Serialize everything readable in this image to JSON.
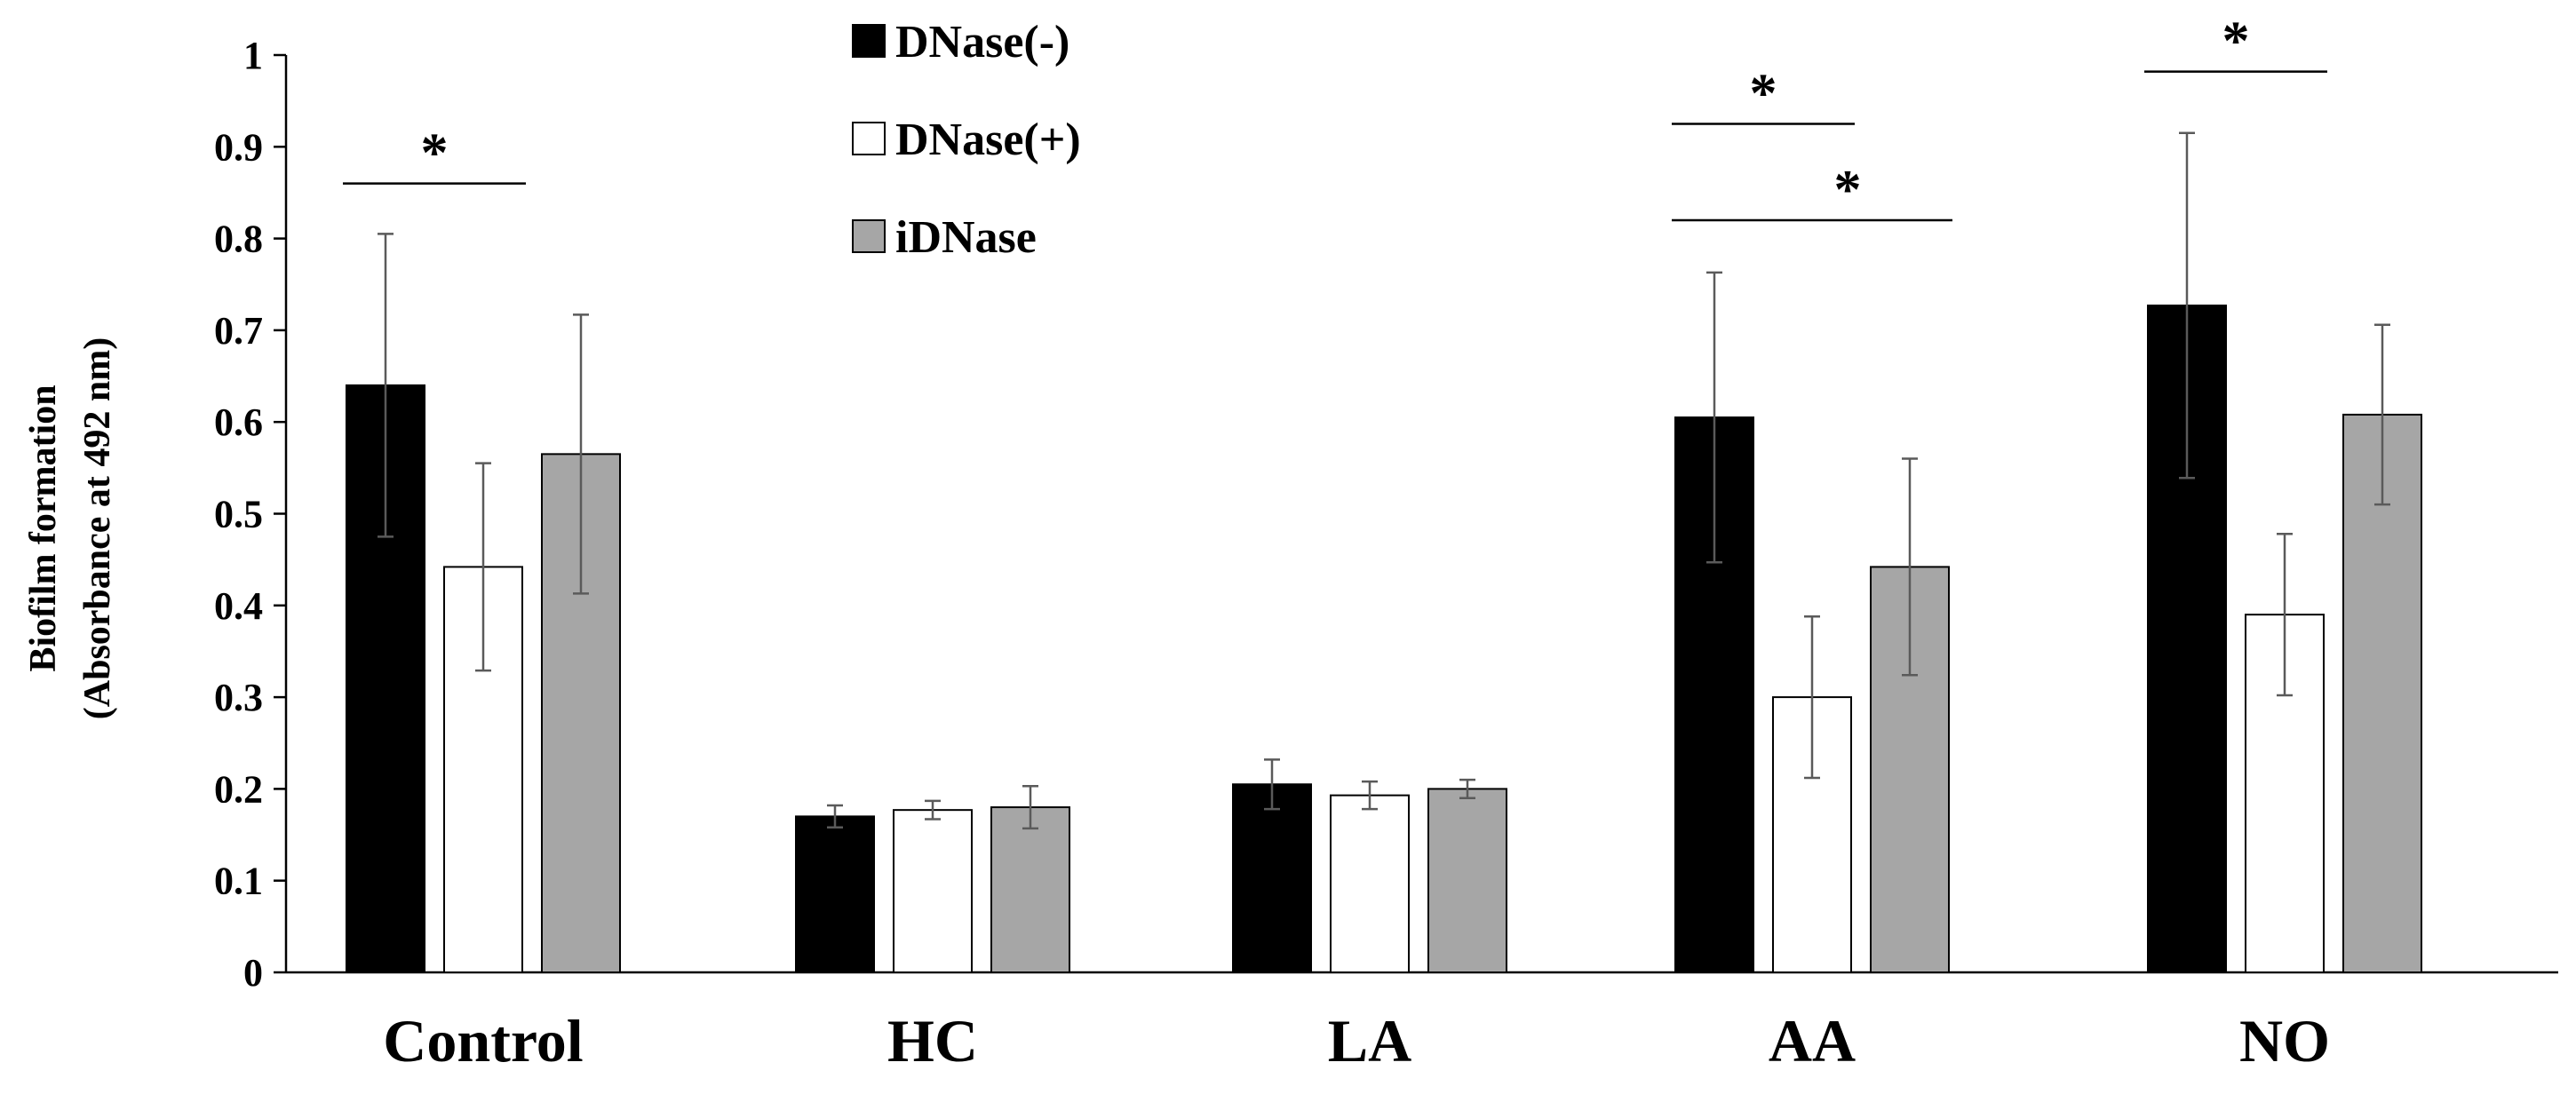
{
  "chart_data": {
    "type": "bar",
    "title": "",
    "xlabel": "",
    "ylabel_line1": "Biofilm formation",
    "ylabel_line2": "(Absorbance at 492 nm)",
    "ylim": [
      0,
      1
    ],
    "yticks": [
      "0",
      "0.1",
      "0.2",
      "0.3",
      "0.4",
      "0.5",
      "0.6",
      "0.7",
      "0.8",
      "0.9",
      "1"
    ],
    "categories": [
      "Control",
      "HC",
      "LA",
      "AA",
      "NO"
    ],
    "legend_position": "top-center",
    "series": [
      {
        "name": "DNase(-)",
        "color": "#000000",
        "values": [
          0.64,
          0.17,
          0.205,
          0.605,
          0.727
        ],
        "errors": [
          0.165,
          0.012,
          0.027,
          0.158,
          0.188
        ]
      },
      {
        "name": "DNase(+)",
        "color": "#ffffff",
        "values": [
          0.442,
          0.177,
          0.193,
          0.3,
          0.39
        ],
        "errors": [
          0.113,
          0.01,
          0.015,
          0.088,
          0.088
        ]
      },
      {
        "name": "iDNase",
        "color": "#a6a6a6",
        "values": [
          0.565,
          0.18,
          0.2,
          0.442,
          0.608
        ],
        "errors": [
          0.152,
          0.023,
          0.01,
          0.118,
          0.098
        ]
      }
    ],
    "significance": [
      {
        "category": "Control",
        "from_series": 0,
        "to_series": 1,
        "y": 0.86,
        "label": "*"
      },
      {
        "category": "AA",
        "from_series": 0,
        "to_series": 1,
        "y": 0.925,
        "label": "*"
      },
      {
        "category": "AA",
        "from_series": 0,
        "to_series": 2,
        "y": 0.82,
        "label": "*"
      },
      {
        "category": "NO",
        "from_series": 0,
        "to_series": 1,
        "y": 0.982,
        "label": "*"
      }
    ]
  }
}
